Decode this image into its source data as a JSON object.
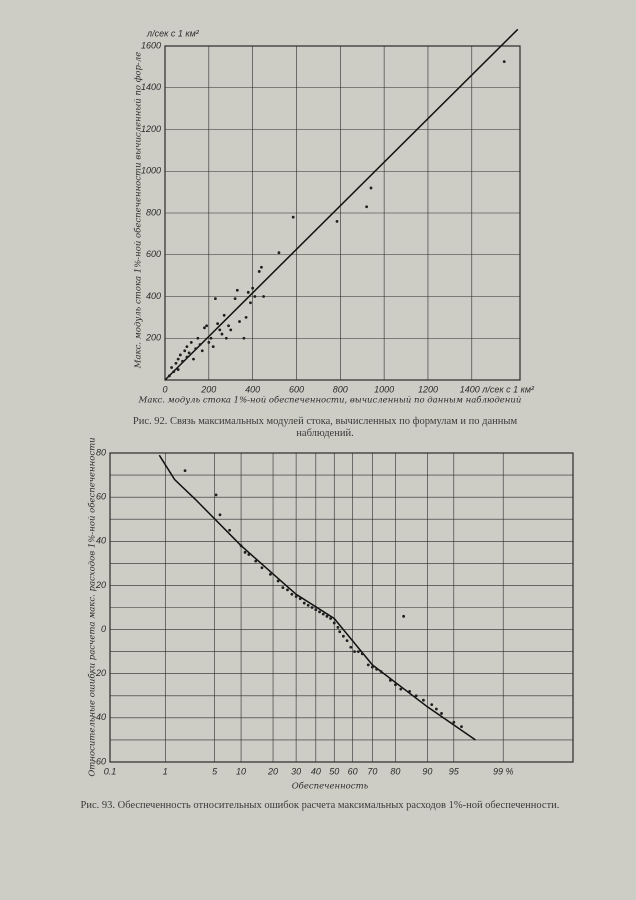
{
  "chart_data": [
    {
      "type": "scatter",
      "y_unit": "л/сек с 1 км²",
      "x_label": "Макс. модуль стока 1%-ной обеспеченности, вычисленный по данным наблюдений",
      "y_label": "Макс. модуль стока 1%-ной обеспеченности вычисленный по фор-ле",
      "caption": "Рис. 92. Связь максимальных модулей стока, вычисленных по формулам и по данным наблюдений.",
      "xlim": [
        0,
        1620
      ],
      "ylim": [
        0,
        1600
      ],
      "xticks": [
        0,
        200,
        400,
        600,
        800,
        1000,
        1200,
        {
          "value": 1400,
          "label": "1400 л/сек с 1 км²"
        }
      ],
      "yticks": [
        200,
        400,
        600,
        800,
        1000,
        1200,
        1400,
        1600
      ],
      "grid": true,
      "color": "#1e1e1e",
      "points": {
        "x": [
          20,
          30,
          40,
          50,
          60,
          60,
          70,
          80,
          90,
          100,
          100,
          110,
          120,
          130,
          140,
          150,
          160,
          170,
          180,
          190,
          200,
          210,
          220,
          230,
          240,
          250,
          260,
          270,
          280,
          290,
          300,
          320,
          330,
          340,
          360,
          370,
          380,
          390,
          400,
          410,
          430,
          440,
          450,
          520,
          585,
          785,
          920,
          940,
          1548
        ],
        "y": [
          20,
          60,
          40,
          80,
          100,
          50,
          120,
          90,
          140,
          110,
          160,
          130,
          180,
          100,
          150,
          200,
          170,
          140,
          250,
          260,
          180,
          200,
          160,
          390,
          270,
          240,
          220,
          310,
          200,
          260,
          240,
          390,
          430,
          280,
          200,
          300,
          420,
          370,
          440,
          400,
          520,
          540,
          400,
          610,
          780,
          760,
          830,
          920,
          1525
        ]
      },
      "line": {
        "x": [
          0,
          1610
        ],
        "y": [
          0,
          1680
        ]
      }
    },
    {
      "type": "scatter",
      "xscale": "probability",
      "x_label": "Обеспеченность",
      "y_label": "Относительные ошибки расчета макс. расходов 1%-ной обеспеченности",
      "caption": "Рис. 93. Обеспеченность относительных ошибок расчета максимальных расходов 1%-ной обеспеченности.",
      "xlim": [
        0.1,
        99.95
      ],
      "ylim": [
        -60,
        80
      ],
      "xticks": [
        0.1,
        1,
        5,
        10,
        20,
        30,
        40,
        50,
        60,
        70,
        80,
        90,
        95,
        {
          "value": 99,
          "label": "99 %"
        }
      ],
      "yticks": [
        -60,
        -40,
        -20,
        0,
        20,
        40,
        60,
        80
      ],
      "y_minor_ticks": [
        -50,
        -30,
        -10,
        10,
        30,
        50,
        70
      ],
      "grid": true,
      "color": "#1e1e1e",
      "points": {
        "x": [
          2.0,
          5.2,
          5.8,
          7.5,
          10,
          11,
          12,
          14,
          16,
          19,
          22,
          24,
          26,
          28,
          30,
          32,
          34,
          36,
          38,
          40,
          42,
          44,
          46,
          48,
          50,
          52,
          53,
          55,
          57,
          59,
          61,
          63,
          65,
          68,
          70,
          72,
          74,
          78,
          80,
          82,
          83,
          85,
          87,
          89,
          91,
          92,
          93,
          95,
          96
        ],
        "y": [
          72,
          61,
          52,
          45,
          38,
          35,
          34,
          31,
          28,
          25,
          22,
          19,
          18,
          16,
          15,
          14,
          12,
          11,
          10,
          9,
          8,
          7,
          6,
          5,
          3,
          1,
          -1,
          -3,
          -5,
          -8,
          -10,
          -10,
          -11,
          -16,
          -17,
          -18,
          -19,
          -23,
          -25,
          -27,
          6,
          -28,
          -30,
          -32,
          -34,
          -36,
          -38,
          -42,
          -44
        ]
      },
      "line": {
        "x": [
          0.8,
          1.4,
          2.8,
          10,
          30,
          50,
          70,
          90,
          97.4
        ],
        "y": [
          79,
          68,
          59,
          38,
          16,
          5,
          -16,
          -35,
          -50
        ]
      }
    }
  ]
}
